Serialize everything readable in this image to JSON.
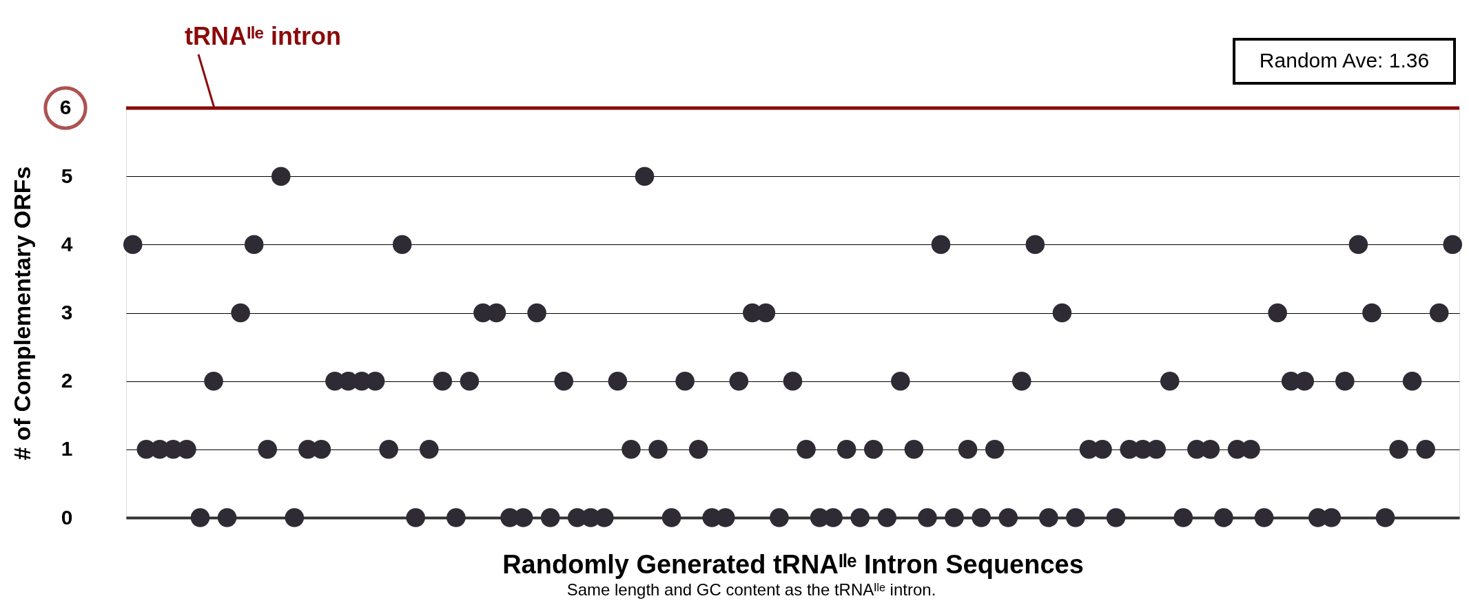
{
  "chart_data": {
    "type": "scatter",
    "xlabel": "Randomly Generated tRNAᴵˡᵉ Intron Sequences",
    "ylabel": "# of Complementary ORFs",
    "annotations": [
      {
        "text": "tRNAᴵˡᵉ intron",
        "y": 6
      },
      "Random Ave: 1.36",
      "Same length and GC content as the tRNAᴵˡᵉ intron."
    ],
    "categories": [
      null,
      null,
      null,
      null,
      null,
      null,
      null,
      null,
      null,
      null,
      null,
      null,
      null,
      null,
      null,
      null,
      null,
      null,
      null,
      null,
      null,
      null,
      null,
      null,
      null,
      null,
      null,
      null,
      null,
      null,
      null,
      null,
      null,
      null,
      null,
      null,
      null,
      null,
      null,
      null,
      null,
      null,
      null,
      null,
      null,
      null,
      null,
      null,
      null,
      null,
      null,
      null,
      null,
      null,
      null,
      null,
      null,
      null,
      null,
      null,
      null,
      null,
      null,
      null,
      null,
      null,
      null,
      null,
      null,
      null,
      null,
      null,
      null,
      null,
      null,
      null,
      null,
      null,
      null,
      null,
      null,
      null,
      null,
      null,
      null,
      null,
      null,
      null,
      null,
      null,
      null,
      null,
      null,
      null,
      null,
      null,
      null,
      null,
      null
    ],
    "series": [
      {
        "color": "#2e2b35",
        "values": [
          4,
          1,
          1,
          1,
          1,
          0,
          2,
          0,
          3,
          4,
          1,
          5,
          0,
          1,
          1,
          2,
          2,
          2,
          2,
          1,
          4,
          0,
          1,
          2,
          0,
          2,
          3,
          3,
          0,
          0,
          3,
          0,
          2,
          0,
          0,
          0,
          2,
          1,
          5,
          1,
          0,
          2,
          1,
          0,
          0,
          2,
          3,
          3,
          0,
          2,
          1,
          0,
          0,
          1,
          0,
          1,
          0,
          2,
          1,
          0,
          4,
          0,
          1,
          0,
          1,
          0,
          2,
          4,
          0,
          3,
          0,
          1,
          1,
          0,
          1,
          1,
          1,
          2,
          0,
          1,
          1,
          0,
          1,
          1,
          0,
          3,
          2,
          2,
          0,
          0,
          2,
          4,
          3,
          0,
          1,
          2,
          1,
          3,
          4
        ]
      }
    ],
    "ylim": [
      0,
      6
    ],
    "yticks": [
      0,
      1,
      2,
      3,
      4,
      5
    ],
    "ref_lines": [
      {
        "axis": "y",
        "value": 6,
        "label": "6",
        "color": "#8b0a0a"
      }
    ],
    "grid": "y",
    "legend": false,
    "marker": "circle"
  }
}
